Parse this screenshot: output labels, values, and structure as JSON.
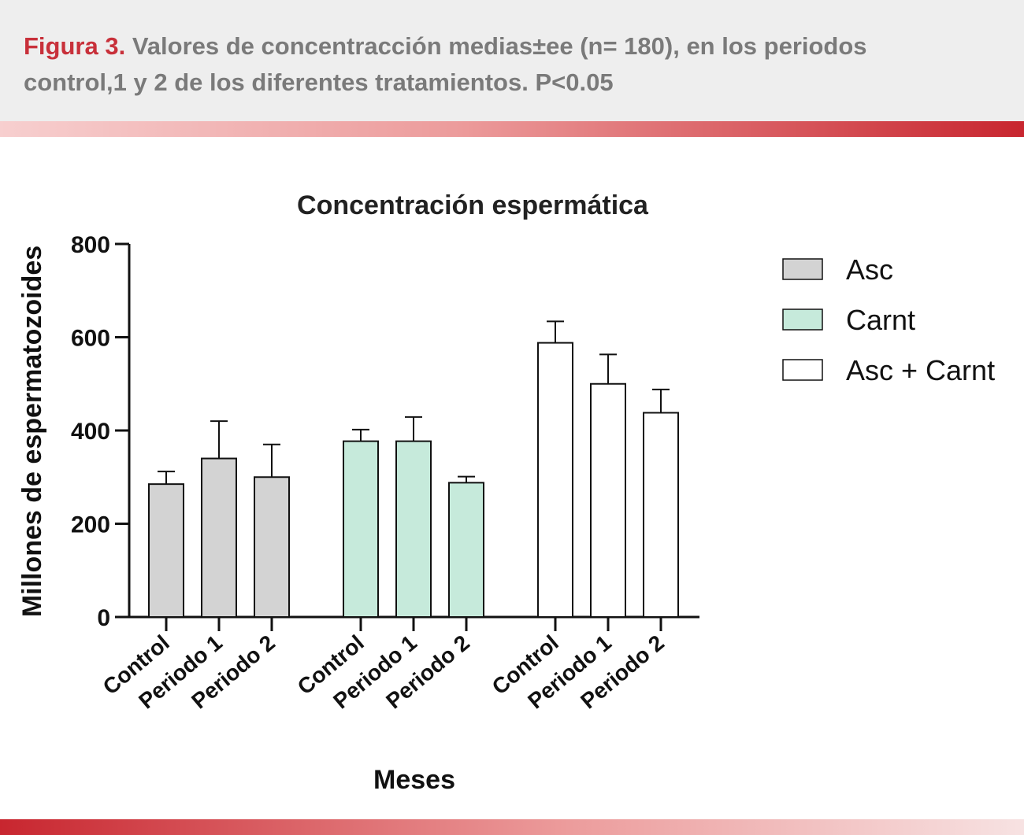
{
  "caption": {
    "label": "Figura 3.",
    "line1": " Valores de concentracción medias±ee (n= 180), en los periodos",
    "line2": "control,1 y 2 de los diferentes tratamientos. P<0.05"
  },
  "colors": {
    "caption_label": "#c8303a",
    "caption_text": "#7a7a7a",
    "axis": "#111111"
  },
  "chart_data": {
    "type": "bar",
    "title": "Concentración espermática",
    "xlabel": "Meses",
    "ylabel": "Millones de espermatozoides",
    "ylim": [
      0,
      800
    ],
    "yticks": [
      0,
      200,
      400,
      600,
      800
    ],
    "grid": false,
    "legend_position": "right",
    "categories": [
      "Control",
      "Periodo 1",
      "Periodo 2"
    ],
    "series": [
      {
        "name": "Asc",
        "color": "#d3d3d3",
        "values": [
          285,
          340,
          300
        ],
        "errors": [
          27,
          80,
          70
        ]
      },
      {
        "name": "Carnt",
        "color": "#c6eadb",
        "values": [
          377,
          377,
          288
        ],
        "errors": [
          25,
          52,
          13
        ]
      },
      {
        "name": "Asc + Carnt",
        "color": "#ffffff",
        "values": [
          588,
          500,
          438
        ],
        "errors": [
          46,
          63,
          50
        ]
      }
    ]
  }
}
